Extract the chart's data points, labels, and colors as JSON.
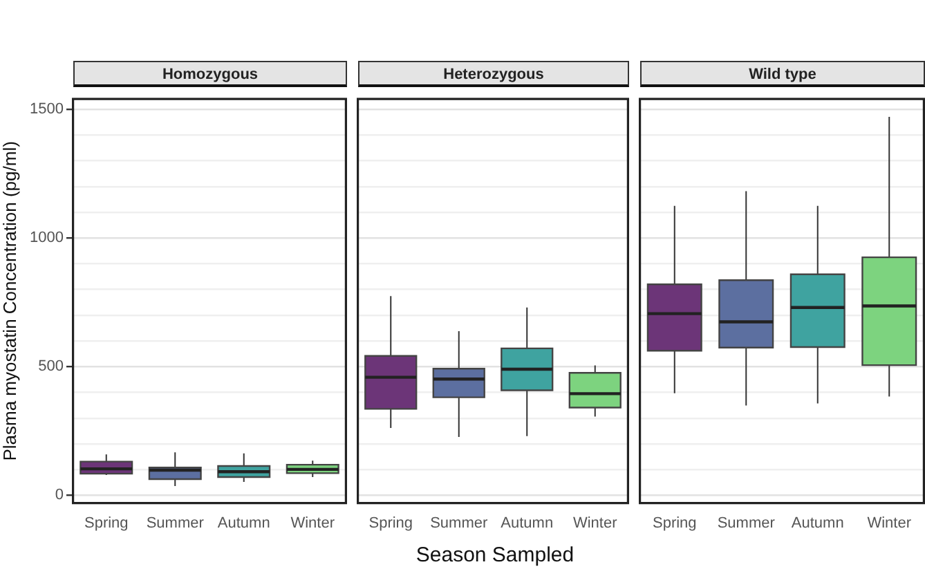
{
  "chart_data": [
    {
      "type": "box",
      "title": "Homozygous",
      "ylabel": "Plasma myostatin Concentration (pg/ml)",
      "categories": [
        "Spring",
        "Summer",
        "Autumn",
        "Winter"
      ],
      "colors": [
        "#6c3578",
        "#5c6fa0",
        "#3fa3a0",
        "#7dd37f"
      ],
      "ylim": [
        -30,
        1540
      ],
      "yticks": [
        0,
        {
          "value": 100,
          "label": null
        },
        {
          "value": 200,
          "label": null
        },
        {
          "value": 300,
          "label": null
        },
        {
          "value": 400,
          "label": null
        },
        500,
        {
          "value": 600,
          "label": null
        },
        {
          "value": 700,
          "label": null
        },
        {
          "value": 800,
          "label": null
        },
        {
          "value": 900,
          "label": null
        },
        1000,
        {
          "value": 1100,
          "label": null
        },
        {
          "value": 1200,
          "label": null
        },
        {
          "value": 1300,
          "label": null
        },
        {
          "value": 1400,
          "label": null
        },
        1500
      ],
      "grid": "y",
      "boxes": [
        {
          "low": 79,
          "q1": 84,
          "median": 103,
          "q3": 131,
          "high": 159
        },
        {
          "low": 36,
          "q1": 63,
          "median": 98,
          "q3": 108,
          "high": 167
        },
        {
          "low": 52,
          "q1": 71,
          "median": 92,
          "q3": 114,
          "high": 163
        },
        {
          "low": 71,
          "q1": 86,
          "median": 101,
          "q3": 119,
          "high": 135
        }
      ]
    },
    {
      "type": "box",
      "title": "Heterozygous",
      "xlabel": "Season Sampled",
      "categories": [
        "Spring",
        "Summer",
        "Autumn",
        "Winter"
      ],
      "colors": [
        "#6c3578",
        "#5c6fa0",
        "#3fa3a0",
        "#7dd37f"
      ],
      "ylim": [
        -30,
        1540
      ],
      "yticks": [
        0,
        {
          "value": 100,
          "label": null
        },
        {
          "value": 200,
          "label": null
        },
        {
          "value": 300,
          "label": null
        },
        {
          "value": 400,
          "label": null
        },
        500,
        {
          "value": 600,
          "label": null
        },
        {
          "value": 700,
          "label": null
        },
        {
          "value": 800,
          "label": null
        },
        {
          "value": 900,
          "label": null
        },
        1000,
        {
          "value": 1100,
          "label": null
        },
        {
          "value": 1200,
          "label": null
        },
        {
          "value": 1300,
          "label": null
        },
        {
          "value": 1400,
          "label": null
        },
        1500
      ],
      "grid": "y",
      "tick_labels": "x",
      "boxes": [
        {
          "low": 262,
          "q1": 336,
          "median": 459,
          "q3": 542,
          "high": 774
        },
        {
          "low": 227,
          "q1": 381,
          "median": 452,
          "q3": 492,
          "high": 638
        },
        {
          "low": 230,
          "q1": 408,
          "median": 490,
          "q3": 571,
          "high": 730
        },
        {
          "low": 306,
          "q1": 341,
          "median": 395,
          "q3": 476,
          "high": 505
        }
      ]
    },
    {
      "type": "box",
      "title": "Wild type",
      "categories": [
        "Spring",
        "Summer",
        "Autumn",
        "Winter"
      ],
      "colors": [
        "#6c3578",
        "#5c6fa0",
        "#3fa3a0",
        "#7dd37f"
      ],
      "ylim": [
        -30,
        1540
      ],
      "yticks": [
        0,
        {
          "value": 100,
          "label": null
        },
        {
          "value": 200,
          "label": null
        },
        {
          "value": 300,
          "label": null
        },
        {
          "value": 400,
          "label": null
        },
        500,
        {
          "value": 600,
          "label": null
        },
        {
          "value": 700,
          "label": null
        },
        {
          "value": 800,
          "label": null
        },
        {
          "value": 900,
          "label": null
        },
        1000,
        {
          "value": 1100,
          "label": null
        },
        {
          "value": 1200,
          "label": null
        },
        {
          "value": 1300,
          "label": null
        },
        {
          "value": 1400,
          "label": null
        },
        1500
      ],
      "grid": "y",
      "tick_labels": "x",
      "boxes": [
        {
          "low": 397,
          "q1": 562,
          "median": 706,
          "q3": 820,
          "high": 1125
        },
        {
          "low": 349,
          "q1": 574,
          "median": 674,
          "q3": 836,
          "high": 1182
        },
        {
          "low": 357,
          "q1": 576,
          "median": 730,
          "q3": 859,
          "high": 1125
        },
        {
          "low": 384,
          "q1": 506,
          "median": 736,
          "q3": 925,
          "high": 1471
        }
      ]
    }
  ]
}
